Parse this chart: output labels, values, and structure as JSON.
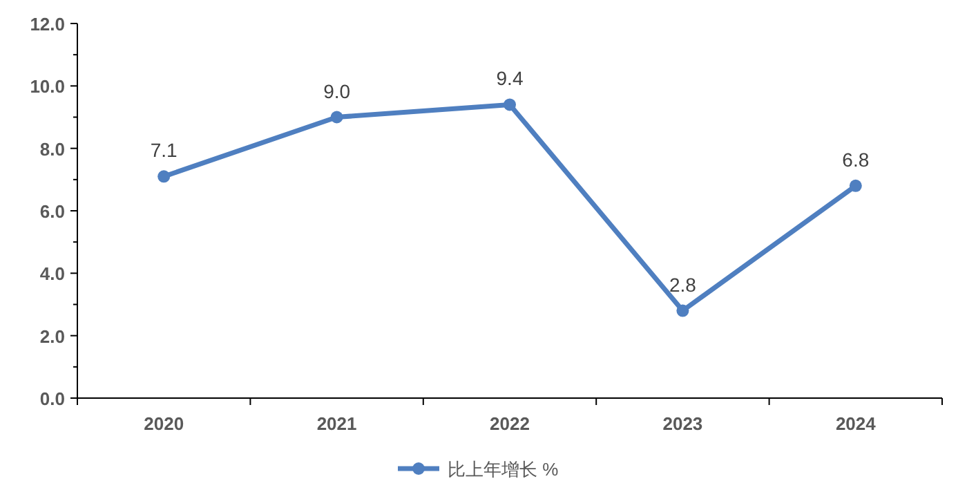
{
  "chart_data": {
    "type": "line",
    "categories": [
      "2020",
      "2021",
      "2022",
      "2023",
      "2024"
    ],
    "series": [
      {
        "name": "比上年增长 %",
        "color": "#4f7fc0",
        "values": [
          7.1,
          9.0,
          9.4,
          2.8,
          6.8
        ],
        "value_labels": [
          "7.1",
          "9.0",
          "9.4",
          "2.8",
          "6.8"
        ]
      }
    ],
    "ylim": [
      0,
      12
    ],
    "yticks": [
      {
        "value": 0,
        "label": "0.0"
      },
      {
        "value": 1,
        "label": null
      },
      {
        "value": 2,
        "label": "2.0"
      },
      {
        "value": 3,
        "label": null
      },
      {
        "value": 4,
        "label": "4.0"
      },
      {
        "value": 5,
        "label": null
      },
      {
        "value": 6,
        "label": "6.0"
      },
      {
        "value": 7,
        "label": null
      },
      {
        "value": 8,
        "label": "8.0"
      },
      {
        "value": 9,
        "label": null
      },
      {
        "value": 10,
        "label": "10.0"
      },
      {
        "value": 11,
        "label": null
      },
      {
        "value": 12,
        "label": "12.0"
      }
    ],
    "grid": false,
    "legend": "bottom",
    "marker": "circle",
    "line_style": "solid"
  }
}
